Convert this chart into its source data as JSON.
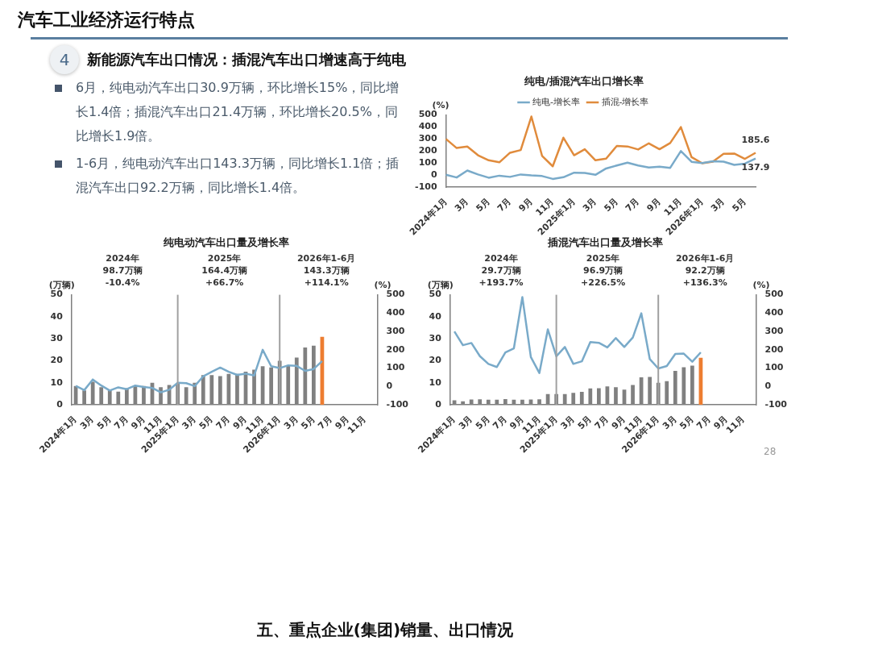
{
  "chart_data": [
    {
      "type": "other",
      "title": "汽车工业经济运行特点",
      "subtitle": "新能源汽车出口情况：插混汽车出口增速高于纯电",
      "annotations": [
        "4",
        "6月，纯电动汽车出口30.9万辆，环比增长15%，同比增长1.4倍；插混汽车出口21.4万辆，环比增长20.5%，同比增长1.9倍。",
        "1-6月，纯电动汽车出口143.3万辆，同比增长1.1倍；插混汽车出口92.2万辆，同比增长1.4倍。",
        "28",
        "五、重点企业(集团)销量、出口情况"
      ]
    },
    {
      "type": "line",
      "title": "纯电/插混汽车出口增长率",
      "ylabel": "(%)",
      "legend": "top",
      "marker": "none",
      "categories": [
        "2024年1月",
        null,
        "3月",
        null,
        "5月",
        null,
        "7月",
        null,
        "9月",
        null,
        "11月",
        null,
        "2025年1月",
        null,
        "3月",
        null,
        "5月",
        null,
        "7月",
        null,
        "9月",
        null,
        "11月",
        null,
        "2026年1月",
        null,
        "3月",
        null,
        "5月",
        null
      ],
      "ylim": [
        -100,
        500
      ],
      "yticks": [
        -100,
        0,
        100,
        200,
        300,
        400,
        500
      ],
      "series": [
        {
          "name": "纯电-增长率",
          "color": "#79aac9",
          "values": [
            3,
            -20,
            38,
            5,
            -22,
            -5,
            -15,
            5,
            -3,
            -8,
            -32,
            -18,
            20,
            18,
            2,
            55,
            80,
            103,
            80,
            63,
            70,
            60,
            200,
            110,
            100,
            115,
            112,
            85,
            95,
            137.9
          ],
          "value_labels": [
            null,
            null,
            null,
            null,
            null,
            null,
            null,
            null,
            null,
            null,
            null,
            null,
            null,
            null,
            null,
            null,
            null,
            null,
            null,
            null,
            null,
            null,
            null,
            null,
            null,
            null,
            null,
            null,
            null,
            "137.9"
          ]
        },
        {
          "name": "插混-增长率",
          "color": "#e08b3c",
          "values": [
            300,
            225,
            237,
            165,
            123,
            106,
            186,
            208,
            487,
            160,
            73,
            311,
            165,
            215,
            123,
            137,
            242,
            238,
            213,
            264,
            215,
            267,
            399,
            149,
            98,
            111,
            177,
            179,
            135,
            185.6
          ],
          "value_labels": [
            null,
            null,
            null,
            null,
            null,
            null,
            null,
            null,
            null,
            null,
            null,
            null,
            null,
            null,
            null,
            null,
            null,
            null,
            null,
            null,
            null,
            null,
            null,
            null,
            null,
            null,
            null,
            null,
            null,
            "185.6"
          ]
        }
      ]
    },
    {
      "type": "bar",
      "title": "纯电动汽车出口量及增长率",
      "ylabel": "(万辆)",
      "y2label": "(%)",
      "marker": "none",
      "categories": [
        "2024年1月",
        null,
        "3月",
        null,
        "5月",
        null,
        "7月",
        null,
        "9月",
        null,
        "11月",
        null,
        "2025年1月",
        null,
        "3月",
        null,
        "5月",
        null,
        "7月",
        null,
        "9月",
        null,
        "11月",
        null,
        "2026年1月",
        null,
        "3月",
        null,
        "5月",
        null,
        "7月",
        null,
        "9月",
        null,
        "11月",
        null
      ],
      "ylim": [
        0,
        50
      ],
      "yticks": [
        0,
        10,
        20,
        30,
        40,
        50
      ],
      "y2lim": [
        -100,
        500
      ],
      "y2ticks": [
        -100,
        0,
        100,
        200,
        300,
        400,
        500
      ],
      "ref_lines": [
        {
          "axis": "x",
          "value": "2025年1月",
          "color": "#a0a0a0"
        },
        {
          "axis": "x",
          "value": "2026年1月",
          "color": "#a0a0a0"
        }
      ],
      "annotations": [
        "2024年",
        "98.7万辆",
        "-10.4%",
        "2025年",
        "164.4万辆",
        "+66.7%",
        "2026年1-6月",
        "143.3万辆",
        "+114.1%"
      ],
      "series": [
        {
          "type": "bar",
          "colors": [
            "#808080",
            "#808080",
            "#808080",
            "#808080",
            "#808080",
            "#808080",
            "#808080",
            "#808080",
            "#808080",
            "#808080",
            "#808080",
            "#808080",
            "#808080",
            "#808080",
            "#808080",
            "#808080",
            "#808080",
            "#808080",
            "#808080",
            "#808080",
            "#808080",
            "#808080",
            "#808080",
            "#808080",
            "#808080",
            "#808080",
            "#808080",
            "#808080",
            "#808080",
            "#ed7d31",
            "#808080",
            "#808080",
            "#808080",
            "#808080",
            "#808080",
            "#808080"
          ],
          "values": [
            8.5,
            6.5,
            10.5,
            8,
            7,
            6,
            7.5,
            8.5,
            8.5,
            10,
            8,
            9,
            9.5,
            8,
            10,
            13.5,
            13.5,
            13,
            14,
            14,
            15,
            16,
            17.5,
            17,
            20,
            18,
            21.5,
            26,
            26.9,
            30.9,
            null,
            null,
            null,
            null,
            null,
            null
          ]
        },
        {
          "type": "line",
          "axis": "y2",
          "color": "#79aac9",
          "values": [
            3,
            -20,
            38,
            5,
            -22,
            -5,
            -15,
            5,
            -3,
            -8,
            -32,
            -18,
            20,
            18,
            2,
            55,
            80,
            103,
            80,
            63,
            70,
            60,
            200,
            110,
            100,
            115,
            112,
            85,
            95,
            138,
            null,
            null,
            null,
            null,
            null,
            null
          ]
        }
      ]
    },
    {
      "type": "bar",
      "title": "插混汽车出口量及增长率",
      "ylabel": "(万辆)",
      "y2label": "(%)",
      "marker": "none",
      "categories": [
        "2024年1月",
        null,
        "3月",
        null,
        "5月",
        null,
        "7月",
        null,
        "9月",
        null,
        "11月",
        null,
        "2025年1月",
        null,
        "3月",
        null,
        "5月",
        null,
        "7月",
        null,
        "9月",
        null,
        "11月",
        null,
        "2026年1月",
        null,
        "3月",
        null,
        "5月",
        null,
        "7月",
        null,
        "9月",
        null,
        "11月",
        null
      ],
      "ylim": [
        0,
        50
      ],
      "yticks": [
        0,
        10,
        20,
        30,
        40,
        50
      ],
      "y2lim": [
        -100,
        500
      ],
      "y2ticks": [
        -100,
        0,
        100,
        200,
        300,
        400,
        500
      ],
      "ref_lines": [
        {
          "axis": "x",
          "value": "2025年1月",
          "color": "#a0a0a0"
        },
        {
          "axis": "x",
          "value": "2026年1月",
          "color": "#a0a0a0"
        }
      ],
      "annotations": [
        "2024年",
        "29.7万辆",
        "+193.7%",
        "2025年",
        "96.9万辆",
        "+226.5%",
        "2026年1-6月",
        "92.2万辆",
        "+136.3%"
      ],
      "series": [
        {
          "type": "bar",
          "colors": [
            "#808080",
            "#808080",
            "#808080",
            "#808080",
            "#808080",
            "#808080",
            "#808080",
            "#808080",
            "#808080",
            "#808080",
            "#808080",
            "#808080",
            "#808080",
            "#808080",
            "#808080",
            "#808080",
            "#808080",
            "#808080",
            "#808080",
            "#808080",
            "#808080",
            "#808080",
            "#808080",
            "#808080",
            "#808080",
            "#808080",
            "#808080",
            "#808080",
            "#808080",
            "#ed7d31",
            "#808080",
            "#808080",
            "#808080",
            "#808080",
            "#808080",
            "#808080"
          ],
          "values": [
            2,
            1.6,
            2.4,
            2.5,
            2.3,
            2.3,
            2.6,
            2.3,
            2.3,
            2.4,
            2.5,
            4.9,
            4.9,
            4.9,
            5.4,
            5.9,
            7.4,
            7.5,
            8.4,
            8,
            6.9,
            9,
            12.5,
            12.7,
            10,
            10.7,
            15.4,
            17.1,
            17.8,
            21.4,
            null,
            null,
            null,
            null,
            null,
            null
          ]
        },
        {
          "type": "line",
          "axis": "y2",
          "color": "#79aac9",
          "values": [
            300,
            225,
            237,
            165,
            123,
            106,
            186,
            208,
            487,
            160,
            73,
            311,
            165,
            215,
            123,
            137,
            242,
            238,
            213,
            264,
            215,
            267,
            399,
            149,
            98,
            111,
            177,
            179,
            135,
            186,
            null,
            null,
            null,
            null,
            null,
            null
          ]
        }
      ]
    }
  ]
}
